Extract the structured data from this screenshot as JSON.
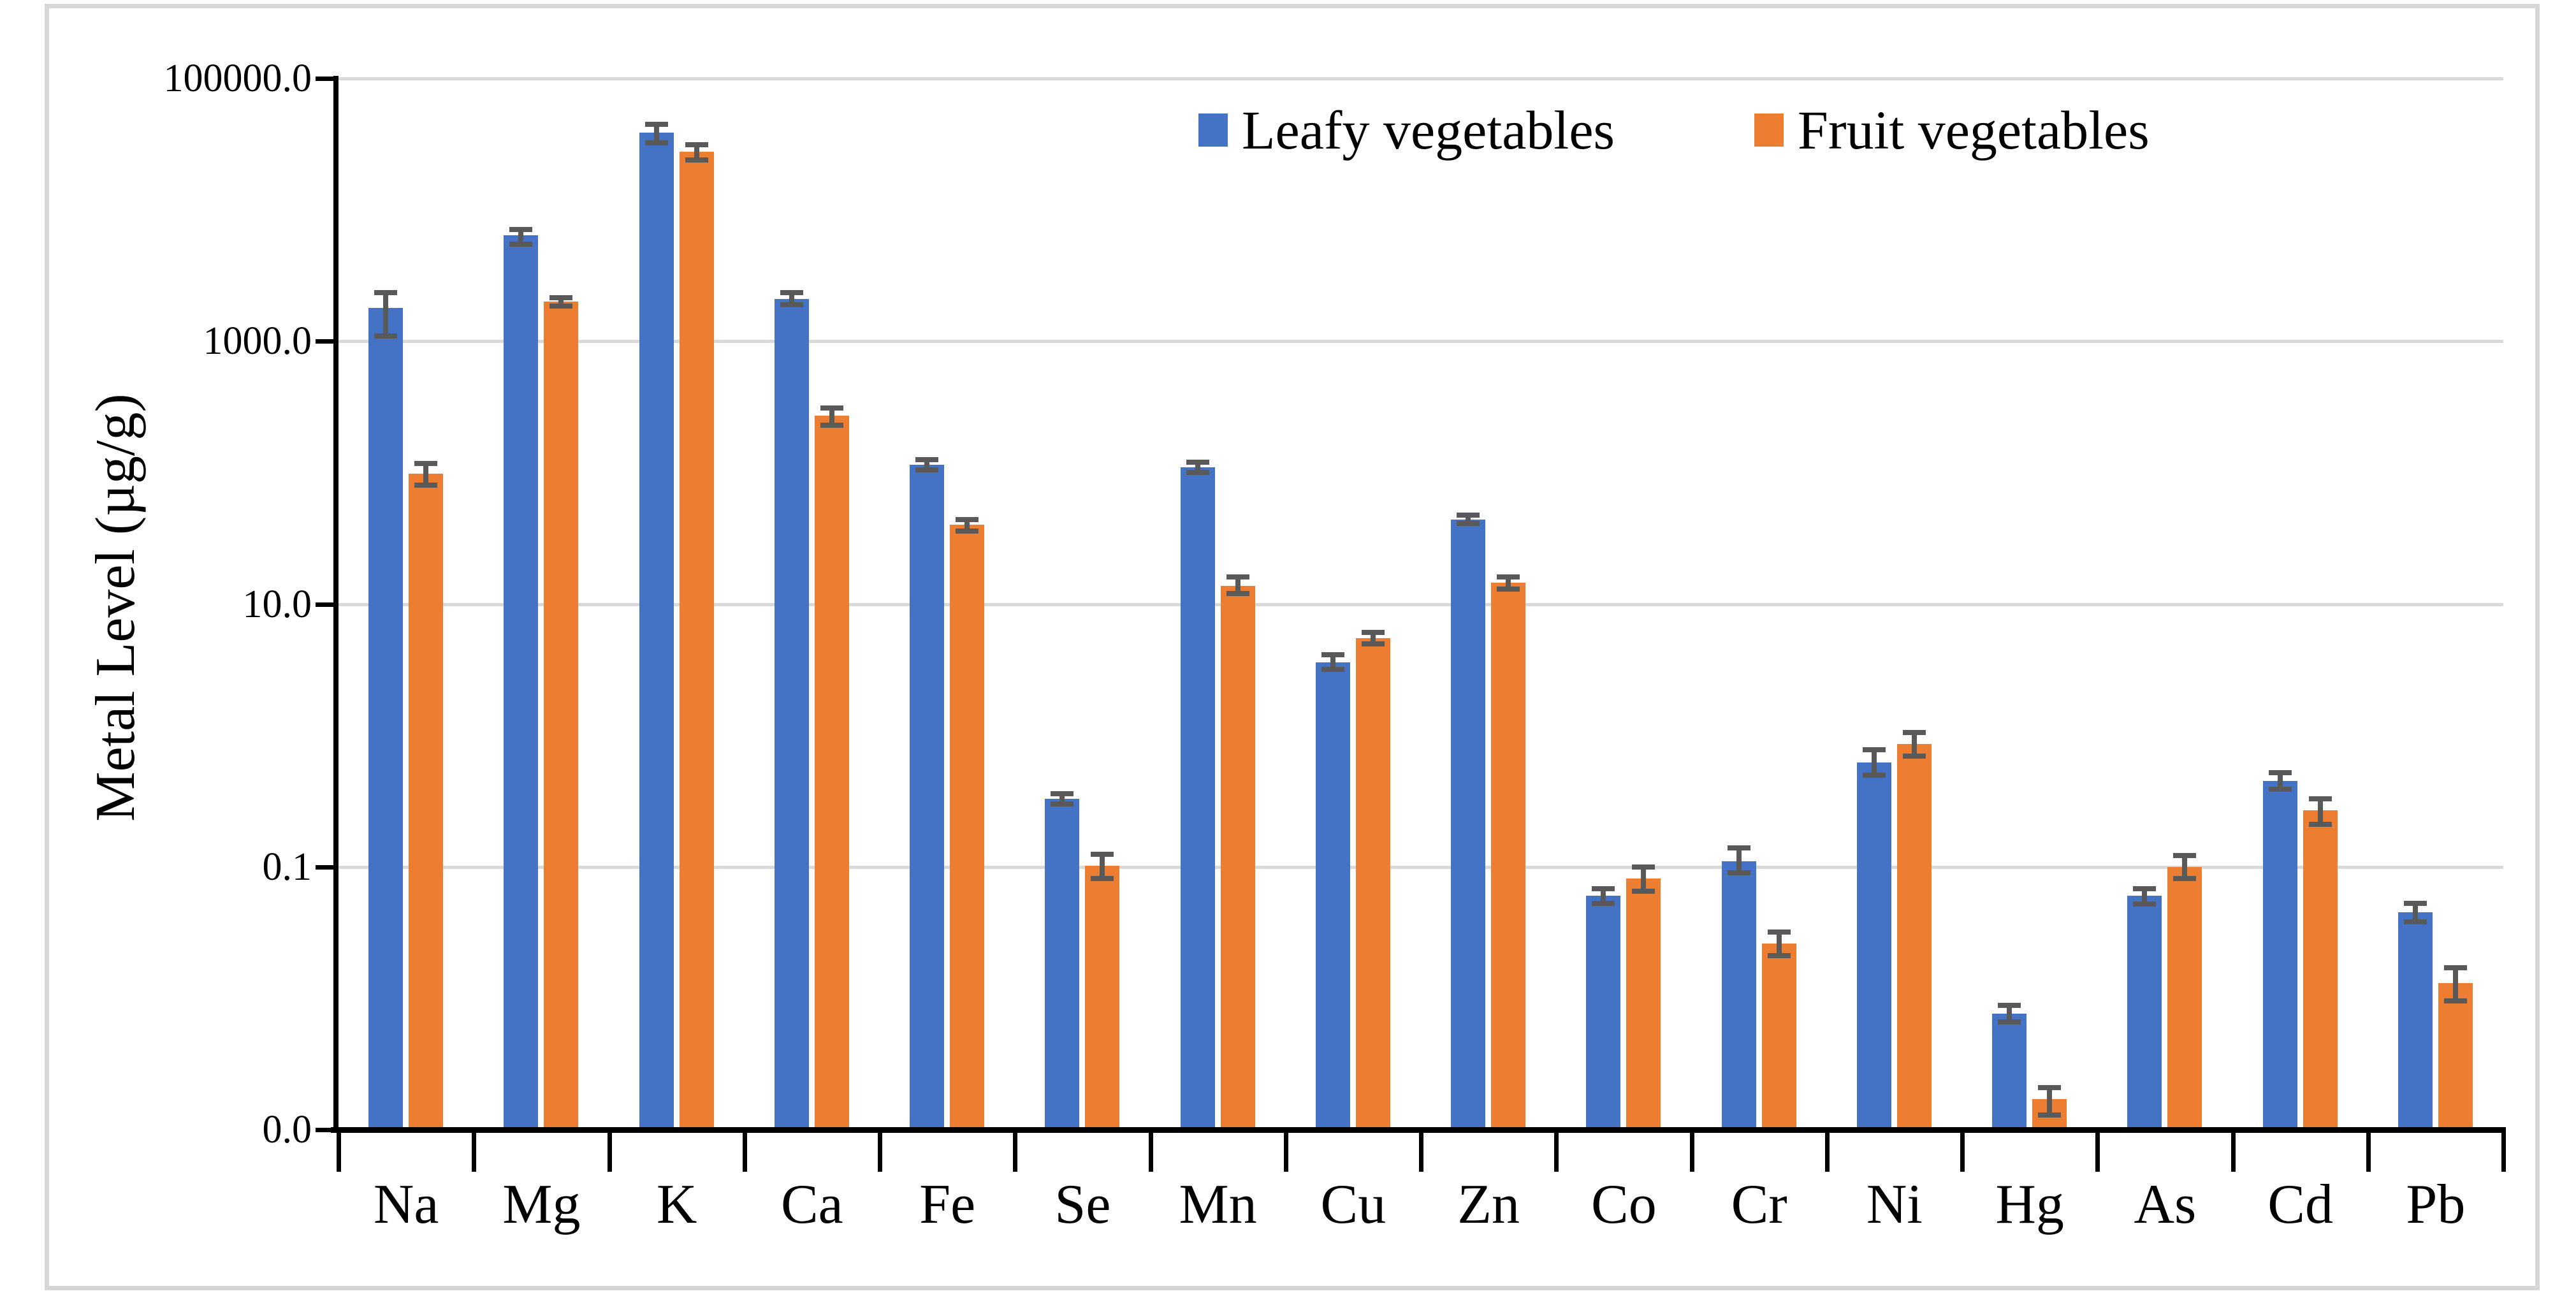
{
  "figure": {
    "border_color": "#d6d6d6",
    "background": "#ffffff"
  },
  "chart_data": {
    "type": "bar",
    "title": "",
    "xlabel": "",
    "ylabel": "Metal Level (µg/g)",
    "scale": "log10",
    "ylim": [
      0.001,
      100000
    ],
    "grid": "horizontal-major",
    "gridline_values": [
      100000,
      1000,
      10,
      0.1
    ],
    "y_ticks": [
      {
        "value": 100000,
        "label": "100000.0"
      },
      {
        "value": 1000,
        "label": "1000.0"
      },
      {
        "value": 10,
        "label": "10.0"
      },
      {
        "value": 0.1,
        "label": "0.1"
      },
      {
        "value": 0.001,
        "label": "0.0"
      }
    ],
    "legend_position": "top-center-inside",
    "error_bar_color": "#595959",
    "gridline_color": "#d9d9d9",
    "categories": [
      "Na",
      "Mg",
      "K",
      "Ca",
      "Fe",
      "Se",
      "Mn",
      "Cu",
      "Zn",
      "Co",
      "Cr",
      "Ni",
      "Hg",
      "As",
      "Cd",
      "Pb"
    ],
    "series": [
      {
        "name": "Leafy vegetables",
        "color": "#4472C4",
        "values": [
          1800,
          6400,
          38700,
          2100,
          115,
          0.33,
          110,
          3.6,
          44,
          0.06,
          0.11,
          0.62,
          0.0076,
          0.06,
          0.45,
          0.045
        ],
        "error_upper": [
          2350,
          7100,
          44500,
          2340,
          125,
          0.36,
          120,
          4.1,
          47.5,
          0.068,
          0.14,
          0.78,
          0.0088,
          0.068,
          0.52,
          0.053
        ],
        "error_lower": [
          1100,
          5500,
          32500,
          1890,
          105,
          0.3,
          100,
          3.2,
          41,
          0.053,
          0.09,
          0.5,
          0.0066,
          0.052,
          0.39,
          0.038
        ]
      },
      {
        "name": "Fruit vegetables",
        "color": "#ED7D31",
        "values": [
          98,
          2000,
          27700,
          270,
          40,
          0.102,
          13.7,
          5.5,
          14.5,
          0.082,
          0.026,
          0.86,
          0.0017,
          0.1,
          0.27,
          0.013
        ],
        "error_upper": [
          118,
          2150,
          31200,
          310,
          44,
          0.125,
          16,
          6.1,
          16,
          0.1,
          0.032,
          1.05,
          0.0021,
          0.122,
          0.33,
          0.017
        ],
        "error_lower": [
          80,
          1850,
          24000,
          230,
          36,
          0.082,
          12,
          5.0,
          13,
          0.065,
          0.021,
          0.7,
          0.0013,
          0.082,
          0.21,
          0.0095
        ]
      }
    ]
  }
}
